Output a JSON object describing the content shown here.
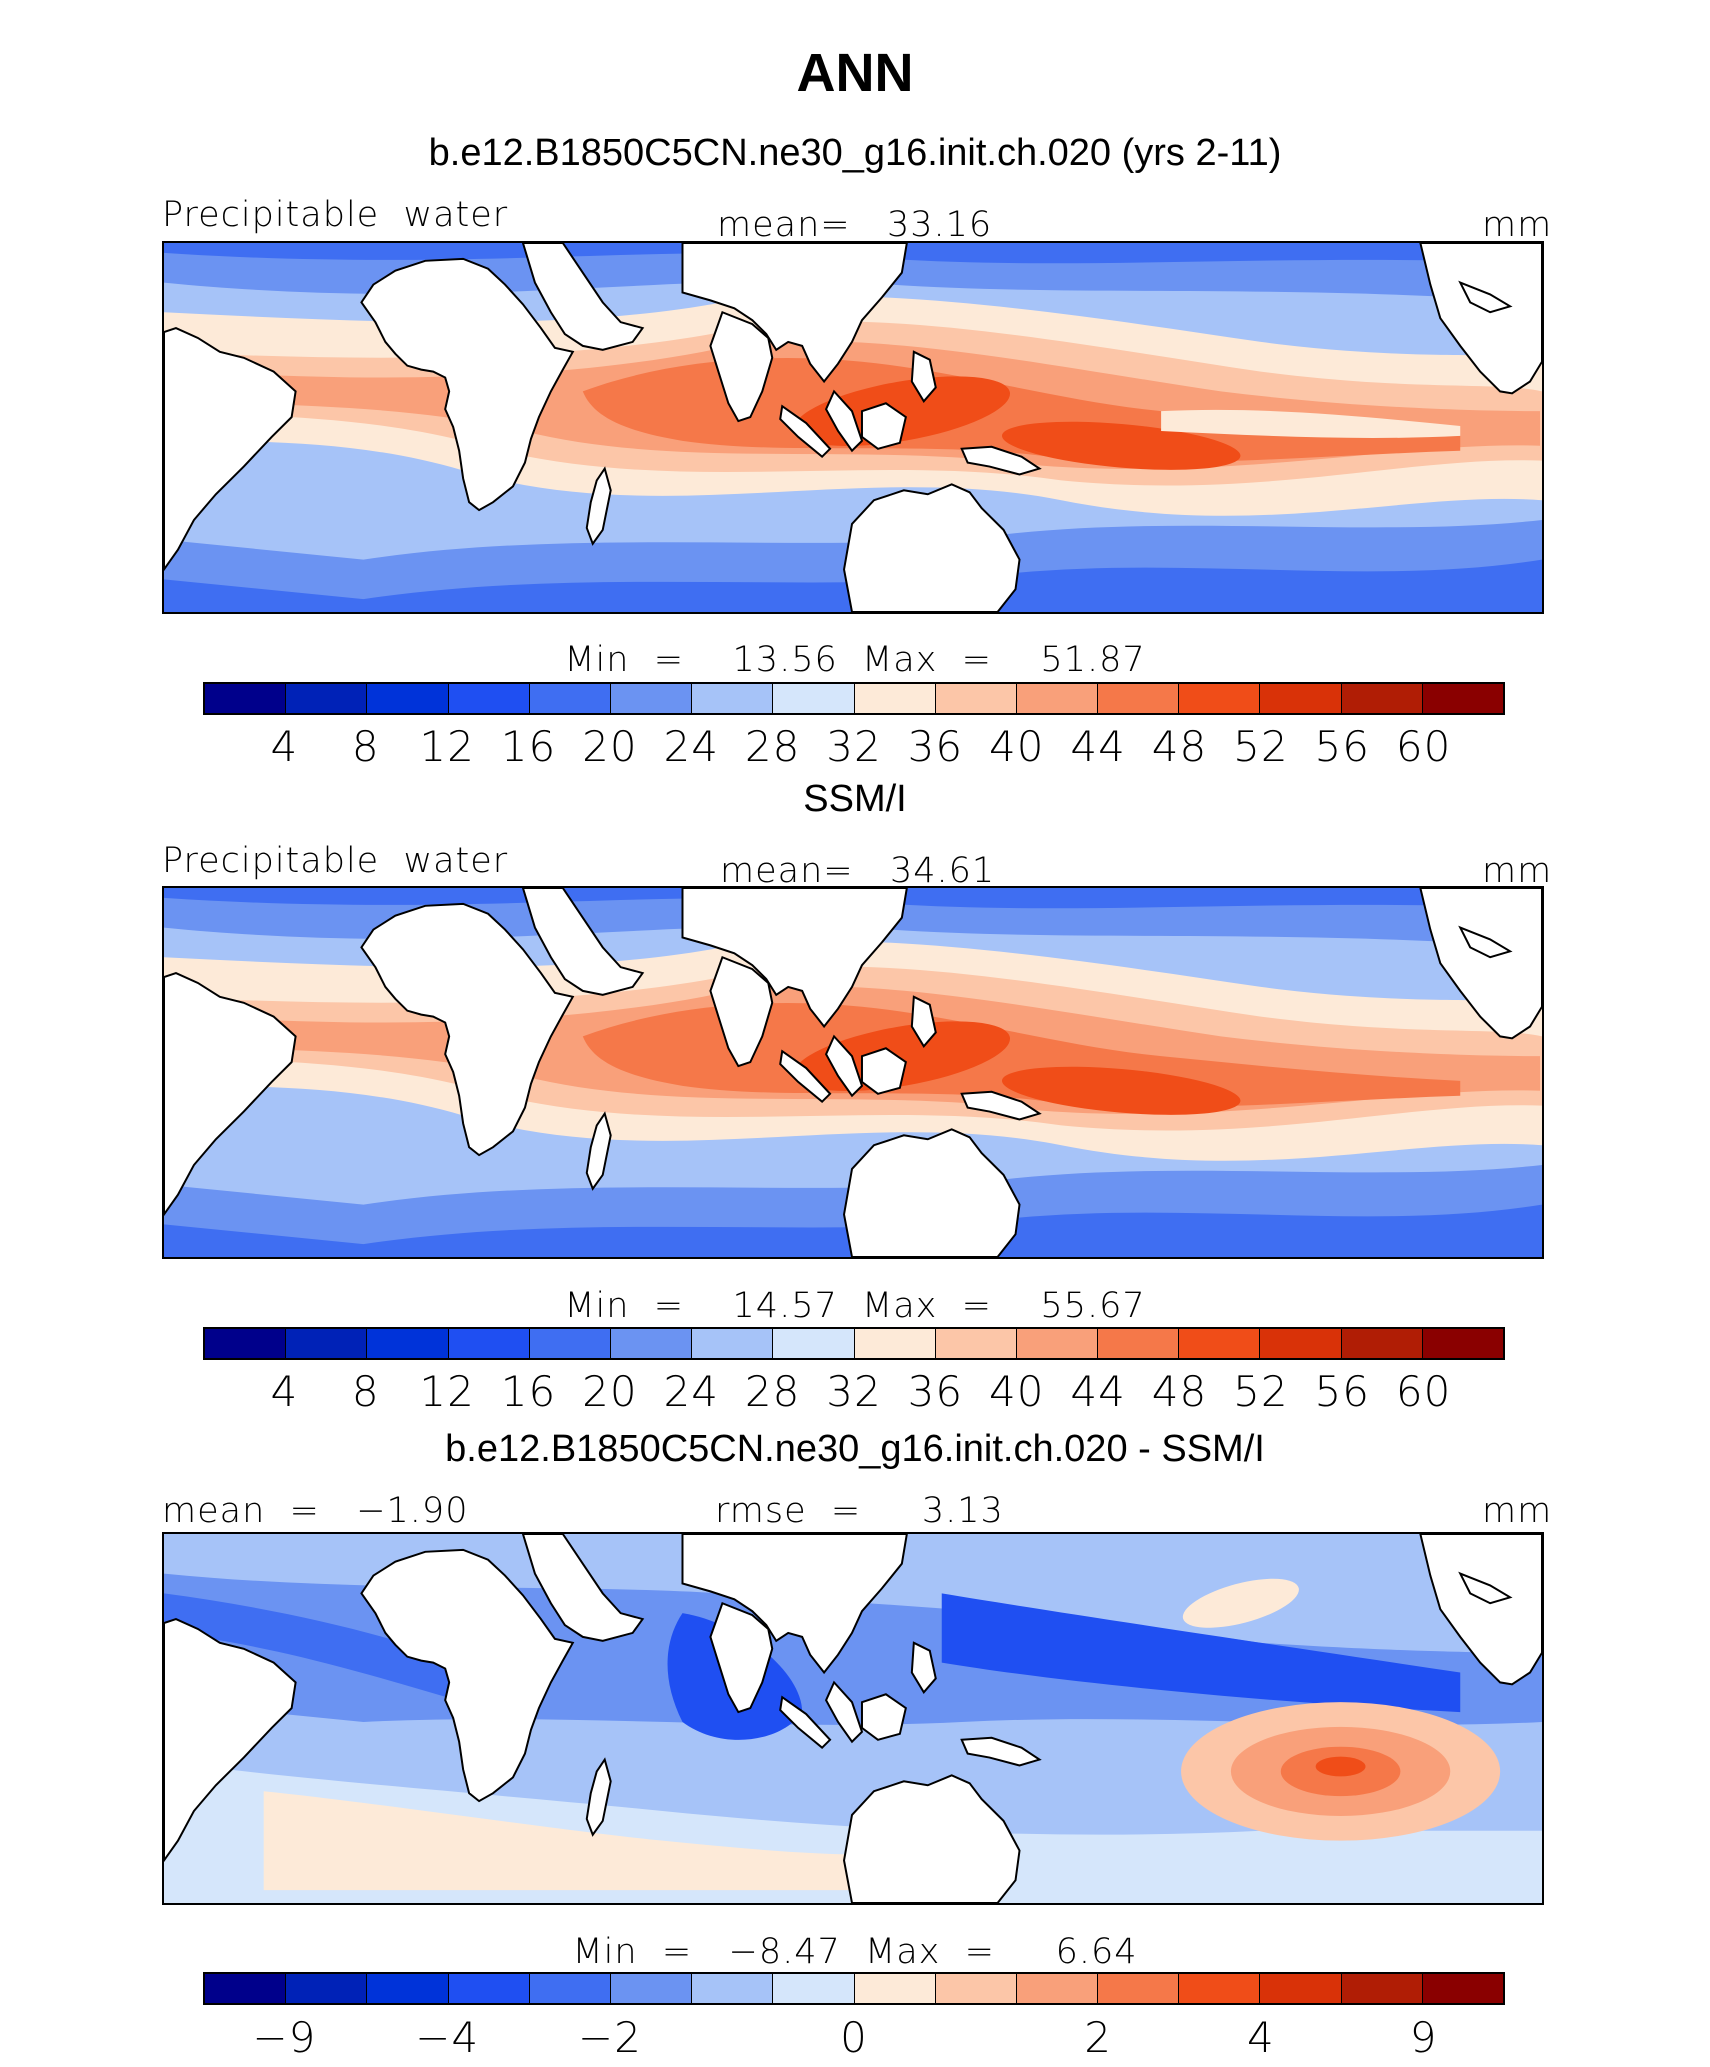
{
  "title": "ANN",
  "colors": [
    "#00008b",
    "#0022b7",
    "#0033d9",
    "#1f4ff2",
    "#3f6ef2",
    "#6b93f2",
    "#a6c3f8",
    "#d5e6fb",
    "#fdead8",
    "#fcc6a8",
    "#f9a07a",
    "#f57849",
    "#f04d18",
    "#d93208",
    "#b01d05",
    "#8a0000"
  ],
  "panels": [
    {
      "title": "b.e12.B1850C5CN.ne30_g16.init.ch.020 (yrs 2-11)",
      "left": "Precipitable  water",
      "center": "mean=   33.16",
      "right": "mm",
      "minmax": "Min  =    13.56  Max  =    51.87",
      "ticks": [
        "4",
        "8",
        "12",
        "16",
        "20",
        "24",
        "28",
        "32",
        "36",
        "40",
        "44",
        "48",
        "52",
        "56",
        "60"
      ],
      "map": "model"
    },
    {
      "title": "SSM/I",
      "left": "Precipitable  water",
      "center": "mean=   34.61",
      "right": "mm",
      "minmax": "Min  =    14.57  Max  =    55.67",
      "ticks": [
        "4",
        "8",
        "12",
        "16",
        "20",
        "24",
        "28",
        "32",
        "36",
        "40",
        "44",
        "48",
        "52",
        "56",
        "60"
      ],
      "map": "obs"
    },
    {
      "title": "b.e12.B1850C5CN.ne30_g16.init.ch.020 - SSM/I",
      "left": "mean  =   −1.90",
      "center": "rmse  =     3.13",
      "right": "mm",
      "minmax": "Min  =   −8.47  Max  =     6.64",
      "ticks": [
        "−9",
        "−4",
        "−2",
        "0",
        "2",
        "4",
        "9"
      ],
      "map": "diff"
    }
  ]
}
